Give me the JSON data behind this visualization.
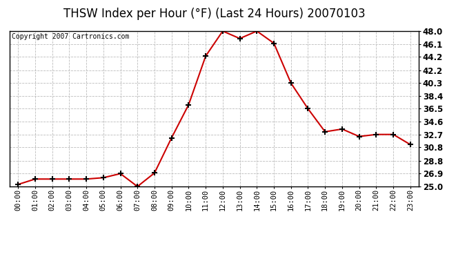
{
  "title": "THSW Index per Hour (°F) (Last 24 Hours) 20070103",
  "copyright": "Copyright 2007 Cartronics.com",
  "hours": [
    "00:00",
    "01:00",
    "02:00",
    "03:00",
    "04:00",
    "05:00",
    "06:00",
    "07:00",
    "08:00",
    "09:00",
    "10:00",
    "11:00",
    "12:00",
    "13:00",
    "14:00",
    "15:00",
    "16:00",
    "17:00",
    "18:00",
    "19:00",
    "20:00",
    "21:00",
    "22:00",
    "23:00"
  ],
  "values": [
    25.3,
    26.1,
    26.1,
    26.1,
    26.1,
    26.3,
    26.9,
    25.0,
    27.0,
    32.2,
    37.1,
    44.3,
    48.0,
    46.9,
    48.0,
    46.2,
    40.3,
    36.5,
    33.1,
    33.5,
    32.4,
    32.7,
    32.7,
    31.2
  ],
  "ylim": [
    25.0,
    48.0
  ],
  "yticks": [
    25.0,
    26.9,
    28.8,
    30.8,
    32.7,
    34.6,
    36.5,
    38.4,
    40.3,
    42.2,
    44.2,
    46.1,
    48.0
  ],
  "ytick_labels": [
    "25.0",
    "26.9",
    "28.8",
    "30.8",
    "32.7",
    "34.6",
    "36.5",
    "38.4",
    "40.3",
    "42.2",
    "44.2",
    "46.1",
    "48.0"
  ],
  "line_color": "#cc0000",
  "marker_color": "#000000",
  "bg_color": "#ffffff",
  "grid_color": "#bbbbbb",
  "title_fontsize": 12,
  "copyright_fontsize": 7,
  "xtick_fontsize": 7.5,
  "ytick_fontsize": 8.5
}
